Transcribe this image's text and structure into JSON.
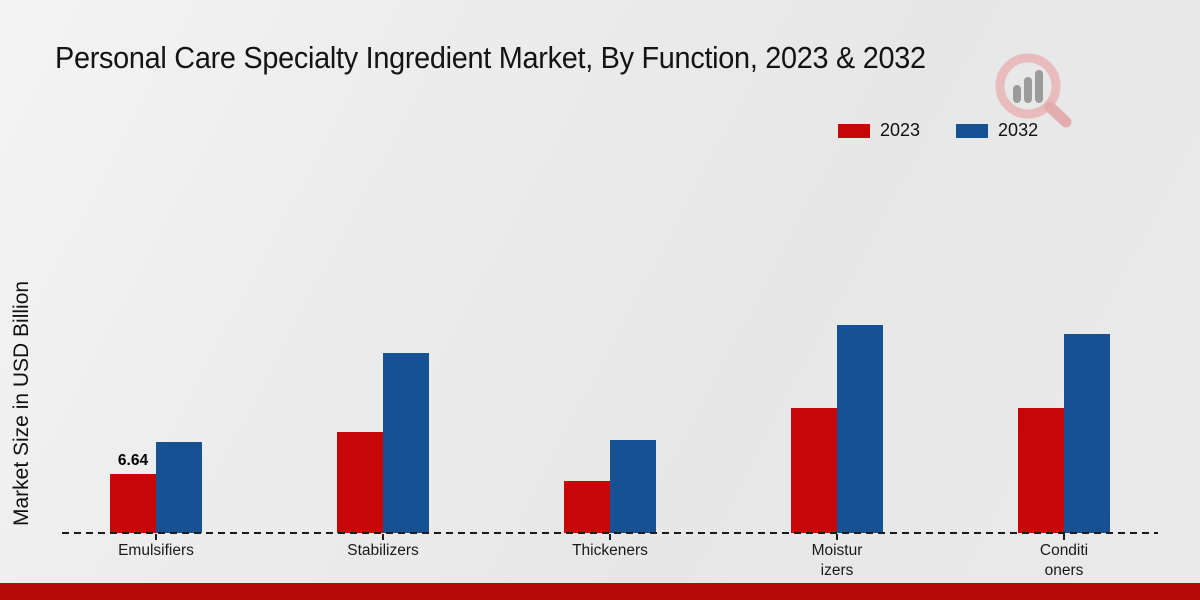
{
  "title": "Personal Care Specialty Ingredient Market, By Function, 2023 & 2032",
  "y_axis_label": "Market Size in USD Billion",
  "legend": [
    {
      "label": "2023",
      "color": "#c70707"
    },
    {
      "label": "2032",
      "color": "#165293"
    }
  ],
  "colors": {
    "series_2023": "#c70707",
    "series_2032": "#165293",
    "footer_stripe": "#b70b0b",
    "axis": "#1c1c1c",
    "background": "#eaeaea"
  },
  "watermark_icon": "magnifier-bar-chart-logo",
  "chart_data": {
    "type": "bar",
    "title": "Personal Care Specialty Ingredient Market, By Function, 2023 & 2032",
    "categories": [
      "Emulsifiers",
      "Stabilizers",
      "Thickeners",
      "Moisturizers",
      "Conditioners"
    ],
    "category_display": [
      "Emulsifiers",
      "Stabilizers",
      "Thickeners",
      "Moistur\nizers",
      "Conditi\noners"
    ],
    "series": [
      {
        "name": "2023",
        "color": "#c70707",
        "values": [
          6.64,
          11.4,
          5.9,
          14.1,
          14.1
        ]
      },
      {
        "name": "2032",
        "color": "#165293",
        "values": [
          10.2,
          20.3,
          10.5,
          23.4,
          22.4
        ]
      }
    ],
    "xlabel": "",
    "ylabel": "Market Size in USD Billion",
    "ylim": [
      0,
      26
    ],
    "grid": false,
    "y_tick_labels_visible": false,
    "legend_position": "top-right",
    "data_labels": [
      {
        "series": "2023",
        "category": "Emulsifiers",
        "text": "6.64"
      }
    ]
  }
}
